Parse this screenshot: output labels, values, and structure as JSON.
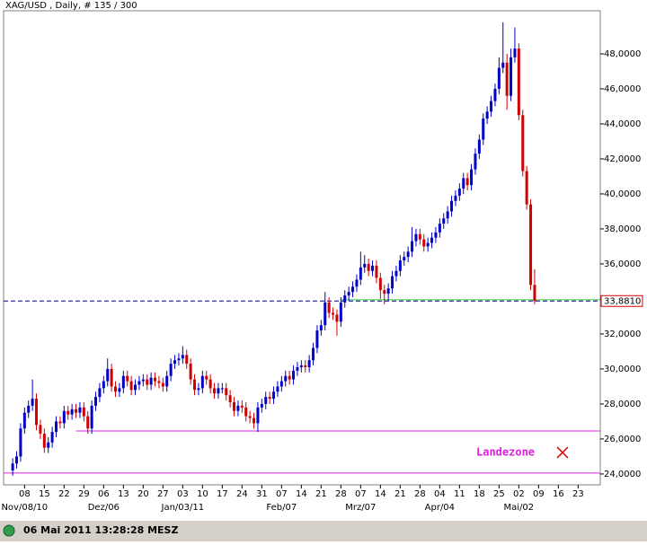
{
  "chart_data": {
    "type": "candlestick",
    "title": "XAG/USD , Daily, # 135 / 300",
    "up_color": "#0000c8",
    "down_color": "#d00000",
    "x": [
      0,
      1,
      2,
      3,
      4,
      5,
      6,
      7,
      8,
      9,
      10,
      11,
      12,
      13,
      14,
      15,
      16,
      17,
      18,
      19,
      20,
      21,
      22,
      23,
      24,
      25,
      26,
      27,
      28,
      29,
      30,
      31,
      32,
      33,
      34,
      35,
      36,
      37,
      38,
      39,
      40,
      41,
      42,
      43,
      44,
      45,
      46,
      47,
      48,
      49,
      50,
      51,
      52,
      53,
      54,
      55,
      56,
      57,
      58,
      59,
      60,
      61,
      62,
      63,
      64,
      65,
      66,
      67,
      68,
      69,
      70,
      71,
      72,
      73,
      74,
      75,
      76,
      77,
      78,
      79,
      80,
      81,
      82,
      83,
      84,
      85,
      86,
      87,
      88,
      89,
      90,
      91,
      92,
      93,
      94,
      95,
      96,
      97,
      98,
      99,
      100,
      101,
      102,
      103,
      104,
      105,
      106,
      107,
      108,
      109,
      110,
      111,
      112,
      113,
      114,
      115,
      116,
      117,
      118,
      119,
      120,
      121,
      122,
      123,
      124,
      125,
      126,
      127,
      128,
      129,
      130,
      131,
      132
    ],
    "open": [
      24.2,
      24.6,
      25.0,
      26.6,
      27.5,
      27.9,
      28.3,
      26.8,
      26.3,
      25.5,
      25.8,
      26.4,
      27.0,
      26.9,
      27.6,
      27.4,
      27.7,
      27.5,
      27.8,
      27.3,
      26.6,
      27.9,
      28.4,
      28.9,
      29.3,
      30.0,
      29.0,
      28.7,
      28.9,
      29.6,
      29.3,
      28.8,
      29.1,
      29.3,
      29.4,
      29.1,
      29.5,
      29.3,
      29.2,
      29.0,
      29.6,
      30.3,
      30.5,
      30.6,
      30.8,
      30.3,
      29.4,
      28.8,
      28.9,
      29.6,
      29.4,
      28.9,
      28.6,
      28.9,
      28.9,
      28.5,
      28.1,
      27.6,
      27.9,
      27.8,
      27.3,
      27.2,
      26.9,
      27.8,
      28.0,
      28.4,
      28.3,
      28.7,
      29.0,
      29.3,
      29.6,
      29.4,
      29.9,
      30.1,
      30.2,
      30.1,
      30.5,
      31.2,
      32.2,
      32.5,
      33.8,
      33.2,
      33.1,
      32.7,
      33.8,
      34.2,
      34.4,
      34.7,
      35.1,
      35.8,
      36.0,
      35.6,
      35.9,
      35.2,
      34.5,
      34.3,
      34.6,
      35.3,
      35.6,
      36.2,
      36.4,
      36.7,
      37.3,
      37.7,
      37.4,
      37.0,
      37.2,
      37.5,
      37.8,
      38.3,
      38.6,
      39.0,
      39.6,
      39.9,
      40.3,
      40.9,
      40.5,
      41.4,
      42.3,
      43.1,
      44.3,
      44.7,
      45.3,
      46.0,
      47.2,
      47.5,
      45.6,
      47.8,
      48.3,
      44.5,
      41.3,
      39.4,
      34.8
    ],
    "high": [
      24.9,
      25.3,
      26.9,
      27.8,
      28.2,
      29.4,
      28.6,
      27.1,
      26.6,
      26.1,
      26.7,
      27.3,
      27.3,
      27.9,
      27.9,
      28.0,
      28.0,
      28.1,
      28.1,
      27.6,
      28.2,
      28.7,
      29.2,
      29.6,
      30.6,
      30.3,
      29.3,
      29.2,
      29.9,
      29.9,
      29.6,
      29.4,
      29.6,
      29.7,
      29.7,
      29.8,
      29.8,
      29.6,
      29.5,
      29.9,
      30.6,
      30.8,
      30.9,
      31.3,
      31.1,
      30.6,
      29.7,
      29.2,
      29.9,
      29.9,
      29.7,
      29.2,
      29.2,
      29.2,
      29.2,
      28.8,
      28.4,
      28.2,
      28.2,
      28.1,
      27.6,
      27.5,
      28.1,
      28.3,
      28.7,
      28.7,
      29.0,
      29.3,
      29.6,
      29.9,
      29.9,
      30.2,
      30.4,
      30.5,
      30.5,
      30.8,
      31.5,
      32.5,
      32.8,
      34.4,
      34.1,
      33.5,
      33.4,
      34.1,
      34.5,
      34.7,
      35.0,
      35.4,
      36.7,
      36.5,
      36.3,
      36.2,
      36.2,
      35.5,
      34.8,
      34.9,
      35.6,
      35.9,
      36.5,
      36.7,
      37.0,
      38.1,
      38.0,
      38.0,
      37.7,
      37.5,
      37.8,
      38.1,
      38.6,
      38.9,
      39.3,
      39.9,
      40.2,
      40.6,
      41.2,
      41.2,
      41.7,
      42.6,
      43.4,
      44.6,
      45.0,
      45.6,
      46.3,
      47.8,
      49.8,
      48.0,
      48.3,
      49.5,
      48.6,
      44.8,
      41.6,
      39.7,
      35.7
    ],
    "low": [
      23.9,
      24.3,
      24.7,
      26.3,
      27.2,
      27.6,
      26.5,
      26.0,
      25.2,
      25.2,
      25.5,
      26.1,
      26.6,
      26.6,
      27.1,
      27.1,
      27.2,
      27.2,
      27.0,
      26.3,
      26.3,
      27.6,
      28.1,
      28.6,
      29.0,
      28.7,
      28.4,
      28.4,
      28.6,
      29.0,
      28.5,
      28.5,
      28.8,
      29.0,
      28.8,
      28.8,
      29.0,
      28.9,
      28.7,
      28.7,
      29.3,
      30.0,
      30.2,
      30.3,
      30.0,
      29.1,
      28.5,
      28.5,
      28.6,
      29.1,
      28.6,
      28.3,
      28.3,
      28.6,
      28.2,
      27.8,
      27.3,
      27.3,
      27.5,
      27.0,
      26.9,
      26.6,
      26.4,
      27.5,
      27.7,
      28.0,
      28.0,
      28.4,
      28.7,
      29.0,
      29.1,
      29.1,
      29.6,
      29.8,
      29.8,
      29.8,
      30.2,
      30.9,
      31.9,
      32.2,
      32.9,
      32.8,
      31.9,
      32.4,
      33.5,
      33.9,
      34.1,
      34.4,
      34.8,
      35.5,
      35.3,
      35.3,
      34.9,
      34.0,
      33.7,
      33.9,
      34.3,
      35.0,
      35.3,
      35.9,
      36.1,
      36.4,
      37.0,
      37.1,
      36.7,
      36.7,
      36.9,
      37.2,
      37.5,
      38.0,
      38.3,
      38.7,
      39.3,
      39.6,
      40.0,
      40.2,
      40.2,
      41.1,
      42.0,
      42.8,
      44.0,
      44.4,
      45.0,
      45.7,
      46.9,
      44.8,
      45.3,
      47.5,
      44.2,
      41.0,
      39.1,
      34.5,
      33.7
    ],
    "close": [
      24.6,
      25.0,
      26.6,
      27.5,
      27.9,
      28.3,
      26.8,
      26.3,
      25.5,
      25.8,
      26.4,
      27.0,
      26.9,
      27.6,
      27.4,
      27.7,
      27.5,
      27.8,
      27.3,
      26.6,
      27.9,
      28.4,
      28.9,
      29.3,
      30.0,
      29.0,
      28.7,
      28.9,
      29.6,
      29.3,
      28.8,
      29.1,
      29.3,
      29.4,
      29.1,
      29.5,
      29.3,
      29.2,
      29.0,
      29.6,
      30.3,
      30.5,
      30.6,
      30.8,
      30.3,
      29.4,
      28.8,
      28.9,
      29.6,
      29.4,
      28.9,
      28.6,
      28.9,
      28.9,
      28.5,
      28.1,
      27.6,
      27.9,
      27.8,
      27.3,
      27.2,
      26.9,
      27.8,
      28.0,
      28.4,
      28.3,
      28.7,
      29.0,
      29.3,
      29.6,
      29.4,
      29.9,
      30.1,
      30.2,
      30.1,
      30.5,
      31.2,
      32.2,
      32.5,
      33.8,
      33.2,
      33.1,
      32.7,
      33.8,
      34.2,
      34.4,
      34.7,
      35.1,
      35.8,
      36.0,
      35.6,
      35.9,
      35.2,
      34.5,
      34.3,
      34.6,
      35.3,
      35.6,
      36.2,
      36.4,
      36.7,
      37.3,
      37.7,
      37.4,
      37.0,
      37.2,
      37.5,
      37.8,
      38.3,
      38.6,
      39.0,
      39.6,
      39.9,
      40.3,
      40.9,
      40.5,
      41.4,
      42.3,
      43.1,
      44.3,
      44.7,
      45.3,
      46.0,
      47.2,
      47.5,
      45.6,
      47.8,
      48.3,
      44.5,
      41.3,
      39.4,
      34.8,
      33.88
    ],
    "xlim": [
      -2.3,
      148.6
    ],
    "xticks": [
      {
        "value": 3,
        "label": "08"
      },
      {
        "value": 8,
        "label": "15"
      },
      {
        "value": 13,
        "label": "22"
      },
      {
        "value": 18,
        "label": "29"
      },
      {
        "value": 23,
        "label": "06"
      },
      {
        "value": 28,
        "label": "13"
      },
      {
        "value": 33,
        "label": "20"
      },
      {
        "value": 38,
        "label": "27"
      },
      {
        "value": 43,
        "label": "03"
      },
      {
        "value": 48,
        "label": "10"
      },
      {
        "value": 53,
        "label": "17"
      },
      {
        "value": 58,
        "label": "24"
      },
      {
        "value": 63,
        "label": "31"
      },
      {
        "value": 68,
        "label": "07"
      },
      {
        "value": 73,
        "label": "14"
      },
      {
        "value": 78,
        "label": "21"
      },
      {
        "value": 83,
        "label": "28"
      },
      {
        "value": 88,
        "label": "07"
      },
      {
        "value": 93,
        "label": "14"
      },
      {
        "value": 98,
        "label": "21"
      },
      {
        "value": 103,
        "label": "28"
      },
      {
        "value": 108,
        "label": "04"
      },
      {
        "value": 113,
        "label": "11"
      },
      {
        "value": 118,
        "label": "18"
      },
      {
        "value": 123,
        "label": "25"
      },
      {
        "value": 128,
        "label": "02"
      },
      {
        "value": 133,
        "label": "09"
      },
      {
        "value": 138,
        "label": "16"
      },
      {
        "value": 143,
        "label": "23"
      }
    ],
    "month_ticks": [
      {
        "value": 3,
        "label": "Nov/08/10"
      },
      {
        "value": 23,
        "label": "Dez/06"
      },
      {
        "value": 43,
        "label": "Jan/03/11"
      },
      {
        "value": 68,
        "label": "Feb/07"
      },
      {
        "value": 88,
        "label": "Mrz/07"
      },
      {
        "value": 108,
        "label": "Apr/04"
      },
      {
        "value": 128,
        "label": "Mai/02"
      }
    ],
    "ylim": [
      23.38,
      50.46
    ],
    "yticks": [
      {
        "value": 24,
        "label": "24,0000"
      },
      {
        "value": 26,
        "label": "26,0000"
      },
      {
        "value": 28,
        "label": "28,0000"
      },
      {
        "value": 30,
        "label": "30,0000"
      },
      {
        "value": 32,
        "label": "32,0000"
      },
      {
        "value": 34,
        "label": "34,0000"
      },
      {
        "value": 36,
        "label": "36,0000"
      },
      {
        "value": 38,
        "label": "38,0000"
      },
      {
        "value": 40,
        "label": "40,0000"
      },
      {
        "value": 42,
        "label": "42,0000"
      },
      {
        "value": 44,
        "label": "44,0000"
      },
      {
        "value": 46,
        "label": "46,0000"
      },
      {
        "value": 48,
        "label": "48,0000"
      }
    ],
    "last_price": {
      "value": 33.881,
      "label": "33,8810"
    },
    "hlines": [
      {
        "value": 33.95,
        "x_start": 83,
        "color": "#33cc33"
      },
      {
        "value": 26.46,
        "x_start": 16,
        "color": "#e020e0"
      },
      {
        "value": 24.05,
        "x_start": -2.3,
        "color": "#e020e0"
      }
    ],
    "annotation": "Landezone",
    "status": "06 Mai 2011 13:28:28 MESZ"
  }
}
